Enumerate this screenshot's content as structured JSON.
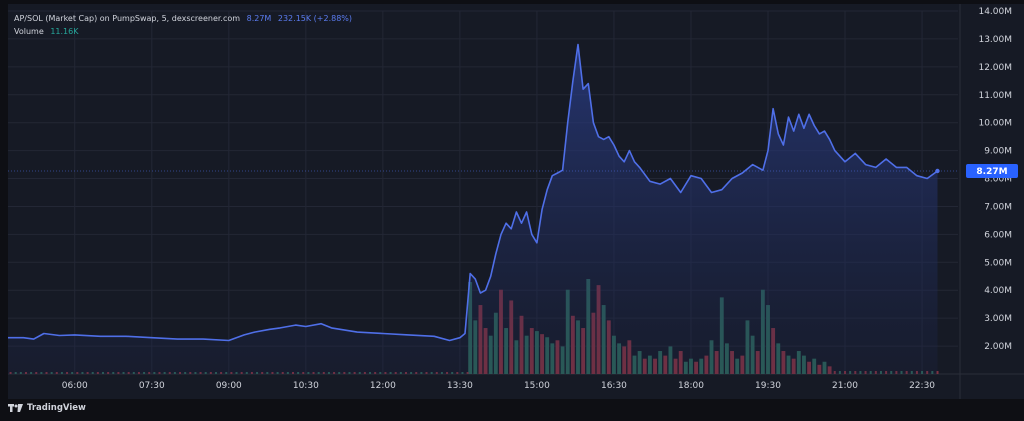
{
  "legend": {
    "pair_label": "AP/SOL (Market Cap) on PumpSwap, 5, dexscreener.com",
    "last_value": "8.27M",
    "change": "232.15K (+2.88%)",
    "volume_label": "Volume",
    "volume_value": "11.16K"
  },
  "price_tag": "8.27M",
  "branding": {
    "name": "TradingView"
  },
  "colors": {
    "background": "#161a25",
    "line": "#4f6fe8",
    "volume_up": "#2e6b5c",
    "volume_down": "#8c3442",
    "text": "#d1d4dc",
    "legend_value": "#5b7cf0",
    "volume_value": "#26a69a"
  },
  "chart_data": {
    "type": "area",
    "ylim": [
      1000000,
      14000000
    ],
    "y_ticks": [
      2000000,
      3000000,
      4000000,
      5000000,
      6000000,
      7000000,
      8000000,
      9000000,
      10000000,
      11000000,
      12000000,
      13000000,
      14000000
    ],
    "y_tick_labels": [
      "2.00M",
      "3.00M",
      "4.00M",
      "5.00M",
      "6.00M",
      "7.00M",
      "8.00M",
      "9.00M",
      "10.00M",
      "11.00M",
      "12.00M",
      "13.00M",
      "14.00M"
    ],
    "x_ticks": [
      6.0,
      7.5,
      9.0,
      10.5,
      12.0,
      13.5,
      15.0,
      16.5,
      18.0,
      19.5,
      21.0,
      22.5
    ],
    "x_tick_labels": [
      "06:00",
      "07:30",
      "09:00",
      "10:30",
      "12:00",
      "13:30",
      "15:00",
      "16:30",
      "18:00",
      "19:30",
      "21:00",
      "22:30"
    ],
    "xlim": [
      4.7,
      23.2
    ],
    "grid": true,
    "series": [
      {
        "x": [
          4.7,
          5.0,
          5.2,
          5.4,
          5.7,
          6.0,
          6.5,
          7.0,
          7.5,
          8.0,
          8.5,
          9.0,
          9.3,
          9.5,
          9.8,
          10.0,
          10.3,
          10.5,
          10.8,
          11.0,
          11.5,
          12.0,
          12.5,
          13.0,
          13.3,
          13.5,
          13.6,
          13.7,
          13.8,
          13.9,
          14.0,
          14.1,
          14.2,
          14.3,
          14.4,
          14.5,
          14.6,
          14.7,
          14.8,
          14.9,
          15.0,
          15.1,
          15.2,
          15.3,
          15.4,
          15.5,
          15.6,
          15.7,
          15.8,
          15.9,
          16.0,
          16.1,
          16.2,
          16.3,
          16.4,
          16.5,
          16.6,
          16.7,
          16.8,
          16.9,
          17.0,
          17.2,
          17.4,
          17.6,
          17.8,
          18.0,
          18.2,
          18.4,
          18.6,
          18.8,
          19.0,
          19.2,
          19.4,
          19.5,
          19.6,
          19.7,
          19.8,
          19.9,
          20.0,
          20.1,
          20.2,
          20.3,
          20.4,
          20.5,
          20.6,
          20.7,
          20.8,
          21.0,
          21.2,
          21.4,
          21.6,
          21.8,
          22.0,
          22.2,
          22.4,
          22.6,
          22.8
        ],
        "values": [
          2300000,
          2300000,
          2250000,
          2450000,
          2380000,
          2400000,
          2350000,
          2350000,
          2300000,
          2250000,
          2250000,
          2200000,
          2400000,
          2500000,
          2600000,
          2650000,
          2750000,
          2700000,
          2800000,
          2650000,
          2500000,
          2450000,
          2400000,
          2350000,
          2200000,
          2300000,
          2450000,
          4600000,
          4400000,
          3900000,
          4000000,
          4500000,
          5300000,
          6000000,
          6400000,
          6200000,
          6800000,
          6400000,
          6800000,
          6000000,
          5700000,
          6900000,
          7600000,
          8100000,
          8200000,
          8300000,
          10000000,
          11500000,
          12800000,
          11200000,
          11400000,
          10000000,
          9500000,
          9400000,
          9500000,
          9200000,
          8800000,
          8600000,
          9000000,
          8600000,
          8400000,
          7900000,
          7800000,
          8000000,
          7500000,
          8100000,
          8000000,
          7500000,
          7600000,
          8000000,
          8200000,
          8500000,
          8300000,
          9000000,
          10500000,
          9600000,
          9200000,
          10200000,
          9700000,
          10300000,
          9800000,
          10300000,
          9900000,
          9600000,
          9700000,
          9400000,
          9000000,
          8600000,
          8900000,
          8500000,
          8400000,
          8700000,
          8400000,
          8400000,
          8100000,
          8000000,
          8270000
        ]
      }
    ],
    "volume": {
      "x": [
        13.7,
        13.8,
        13.9,
        14.0,
        14.1,
        14.2,
        14.3,
        14.4,
        14.5,
        14.6,
        14.7,
        14.8,
        14.9,
        15.0,
        15.1,
        15.2,
        15.3,
        15.4,
        15.5,
        15.6,
        15.7,
        15.8,
        15.9,
        16.0,
        16.1,
        16.2,
        16.3,
        16.4,
        16.5,
        16.6,
        16.7,
        16.8,
        16.9,
        17.0,
        17.1,
        17.2,
        17.3,
        17.4,
        17.5,
        17.6,
        17.7,
        17.8,
        17.9,
        18.0,
        18.1,
        18.2,
        18.3,
        18.4,
        18.5,
        18.6,
        18.7,
        18.8,
        18.9,
        19.0,
        19.1,
        19.2,
        19.3,
        19.4,
        19.5,
        19.6,
        19.7,
        19.8,
        19.9,
        20.0,
        20.1,
        20.2,
        20.3,
        20.4,
        20.5,
        20.6,
        20.7
      ],
      "values": [
        60,
        35,
        45,
        30,
        25,
        40,
        55,
        30,
        48,
        22,
        38,
        25,
        30,
        28,
        26,
        24,
        20,
        22,
        18,
        55,
        38,
        35,
        30,
        62,
        40,
        58,
        45,
        35,
        25,
        20,
        18,
        22,
        12,
        15,
        10,
        12,
        10,
        15,
        12,
        18,
        10,
        15,
        8,
        10,
        8,
        10,
        12,
        22,
        15,
        50,
        20,
        15,
        10,
        12,
        35,
        25,
        15,
        55,
        45,
        30,
        20,
        15,
        12,
        10,
        15,
        12,
        8,
        10,
        6,
        8,
        5
      ],
      "up": [
        true,
        true,
        false,
        false,
        true,
        true,
        false,
        true,
        false,
        true,
        false,
        true,
        false,
        true,
        false,
        true,
        true,
        false,
        true,
        true,
        false,
        true,
        false,
        true,
        false,
        false,
        true,
        false,
        true,
        true,
        false,
        false,
        true,
        true,
        false,
        true,
        false,
        true,
        false,
        true,
        false,
        false,
        true,
        true,
        false,
        true,
        false,
        true,
        false,
        true,
        true,
        false,
        true,
        false,
        true,
        true,
        false,
        true,
        true,
        false,
        true,
        false,
        true,
        false,
        true,
        true,
        false,
        true,
        false,
        true,
        false
      ]
    }
  }
}
